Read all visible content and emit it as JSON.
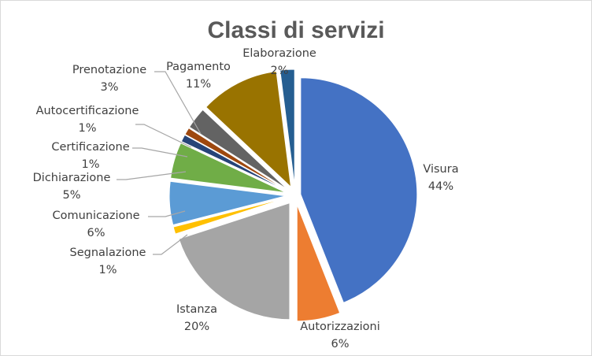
{
  "chart_data": {
    "type": "pie",
    "title": "Classi di servizi",
    "exploded": true,
    "legend": "none",
    "start_angle_deg": 0,
    "direction": "clockwise",
    "slices": [
      {
        "label": "Visura",
        "value": 44,
        "pct": "44%",
        "color": "#4472C4"
      },
      {
        "label": "Autorizzazioni",
        "value": 6,
        "pct": "6%",
        "color": "#ED7D31"
      },
      {
        "label": "Istanza",
        "value": 20,
        "pct": "20%",
        "color": "#A5A5A5"
      },
      {
        "label": "Segnalazione",
        "value": 1,
        "pct": "1%",
        "color": "#FFC000"
      },
      {
        "label": "Comunicazione",
        "value": 6,
        "pct": "6%",
        "color": "#5B9BD5"
      },
      {
        "label": "Dichiarazione",
        "value": 5,
        "pct": "5%",
        "color": "#70AD47"
      },
      {
        "label": "Certificazione",
        "value": 1,
        "pct": "1%",
        "color": "#264478"
      },
      {
        "label": "Autocertificazione",
        "value": 1,
        "pct": "1%",
        "color": "#9E480E"
      },
      {
        "label": "Prenotazione",
        "value": 3,
        "pct": "3%",
        "color": "#636363"
      },
      {
        "label": "Pagamento",
        "value": 11,
        "pct": "11%",
        "color": "#997300"
      },
      {
        "label": "Elaborazione",
        "value": 2,
        "pct": "2%",
        "color": "#255E91"
      }
    ]
  }
}
